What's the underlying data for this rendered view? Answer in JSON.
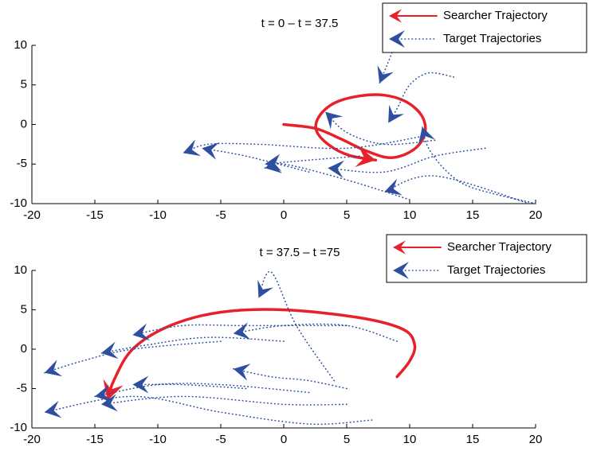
{
  "chart_data": [
    {
      "type": "line",
      "title": "t = 0 – t = 37.5",
      "xlim": [
        -20,
        20
      ],
      "ylim": [
        -10,
        10
      ],
      "xticks": [
        -20,
        -15,
        -10,
        -5,
        0,
        5,
        10,
        15,
        20
      ],
      "yticks": [
        -10,
        -5,
        0,
        5,
        10
      ],
      "legend": "upper right",
      "series": [
        {
          "name": "Searcher Trajectory",
          "color": "#e8202a",
          "style": "solid",
          "paths": [
            {
              "x": [
                0,
                2.5,
                4.5,
                6.5,
                8.5,
                10.3,
                11.2,
                11,
                9.8,
                8,
                6,
                4,
                2.8,
                2.6,
                3.6,
                5.2,
                7.3
              ],
              "y": [
                0,
                -0.5,
                -1.8,
                -3.3,
                -4.2,
                -3.2,
                -1.2,
                1,
                2.8,
                3.7,
                3.6,
                2.7,
                1,
                -0.8,
                -2.6,
                -3.9,
                -4.5
              ]
            }
          ]
        },
        {
          "name": "Target Trajectories",
          "color": "#2e4fa0",
          "style": "dotted",
          "paths": [
            {
              "x": [
                8.7,
                8.2,
                7.6
              ],
              "y": [
                9.5,
                7.5,
                5.2
              ]
            },
            {
              "x": [
                13.5,
                11.5,
                10,
                9,
                8.3
              ],
              "y": [
                6,
                6.5,
                5,
                2,
                0.2
              ]
            },
            {
              "x": [
                12,
                8,
                5,
                3.3
              ],
              "y": [
                -2,
                -2.5,
                -1,
                1.6
              ]
            },
            {
              "x": [
                11,
                5,
                -2,
                -6,
                -8
              ],
              "y": [
                -1.5,
                -3,
                -2.5,
                -2.5,
                -3.6
              ]
            },
            {
              "x": [
                20,
                15,
                13,
                11.5,
                11
              ],
              "y": [
                -10,
                -8,
                -6,
                -3,
                -0.3
              ]
            },
            {
              "x": [
                16,
                12,
                8,
                3.5
              ],
              "y": [
                -3,
                -4,
                -6,
                -5.5
              ]
            },
            {
              "x": [
                10,
                5,
                0,
                -1.5
              ],
              "y": [
                -9.5,
                -7,
                -5,
                -5.5
              ]
            },
            {
              "x": [
                19.5,
                12,
                8
              ],
              "y": [
                -10,
                -6.5,
                -8.5
              ]
            },
            {
              "x": [
                6,
                2,
                -1.5
              ],
              "y": [
                -4,
                -4.5,
                -5
              ]
            },
            {
              "x": [
                2,
                -3,
                -6.5
              ],
              "y": [
                -6,
                -4,
                -3
              ]
            }
          ]
        }
      ]
    },
    {
      "type": "line",
      "title": "t = 37.5 – t =75",
      "xlim": [
        -20,
        20
      ],
      "ylim": [
        -10,
        10
      ],
      "xticks": [
        -20,
        -15,
        -10,
        -5,
        0,
        5,
        10,
        15,
        20
      ],
      "yticks": [
        -10,
        -5,
        0,
        5,
        10
      ],
      "legend": "upper right",
      "series": [
        {
          "name": "Searcher Trajectory",
          "color": "#e8202a",
          "style": "solid",
          "paths": [
            {
              "x": [
                9,
                10,
                10.4,
                9.5,
                6,
                0,
                -5,
                -9,
                -12,
                -13.5,
                -14
              ],
              "y": [
                -3.5,
                -1.5,
                0.5,
                2.5,
                4,
                5,
                4.7,
                3,
                0,
                -4,
                -6.5
              ]
            }
          ]
        },
        {
          "name": "Target Trajectories",
          "color": "#2e4fa0",
          "style": "dotted",
          "paths": [
            {
              "x": [
                4,
                1,
                -1,
                -2
              ],
              "y": [
                -4,
                3,
                9.8,
                6.5
              ]
            },
            {
              "x": [
                9,
                5,
                0,
                -4
              ],
              "y": [
                1,
                3,
                3,
                2
              ]
            },
            {
              "x": [
                5,
                2,
                -1,
                -4
              ],
              "y": [
                -5,
                -4,
                -3.5,
                -2.5
              ]
            },
            {
              "x": [
                5,
                -3,
                -8,
                -12
              ],
              "y": [
                3,
                3,
                3,
                1.8
              ]
            },
            {
              "x": [
                0,
                -6,
                -11,
                -14.5
              ],
              "y": [
                1,
                1.5,
                0.5,
                -0.5
              ]
            },
            {
              "x": [
                -5,
                -12,
                -16,
                -19
              ],
              "y": [
                1,
                0,
                -1.5,
                -3
              ]
            },
            {
              "x": [
                7,
                2,
                -5,
                -12,
                -19
              ],
              "y": [
                -9,
                -9.5,
                -8,
                -6,
                -8
              ]
            },
            {
              "x": [
                2,
                -5,
                -10,
                -15
              ],
              "y": [
                -5.5,
                -4.5,
                -4.5,
                -6
              ]
            },
            {
              "x": [
                5,
                0,
                -8,
                -14.5
              ],
              "y": [
                -7,
                -7,
                -6,
                -7
              ]
            },
            {
              "x": [
                -3,
                -8,
                -12
              ],
              "y": [
                -5,
                -4.5,
                -4.5
              ]
            }
          ]
        }
      ]
    }
  ]
}
